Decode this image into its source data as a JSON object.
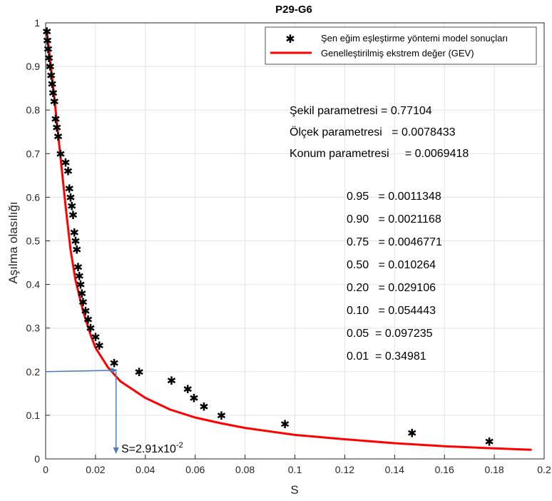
{
  "chart_data": {
    "type": "scatter",
    "title": "P29-G6",
    "xlabel": "S",
    "ylabel": "Aşılma olasılığı",
    "xlim": [
      0,
      0.2
    ],
    "ylim": [
      0,
      1
    ],
    "xticks": [
      "0",
      "0.02",
      "0.04",
      "0.06",
      "0.08",
      "0.1",
      "0.12",
      "0.14",
      "0.16",
      "0.18",
      "0.2"
    ],
    "yticks": [
      "0",
      "0.1",
      "0.2",
      "0.3",
      "0.4",
      "0.5",
      "0.6",
      "0.7",
      "0.8",
      "0.9",
      "1"
    ],
    "grid": true,
    "legend_position": "top-right",
    "series": [
      {
        "name": "Şen eğim eşleştirme yöntemi model sonuçları",
        "type": "scatter",
        "marker": "asterisk",
        "color": "#000000",
        "x": [
          0.0005,
          0.0007,
          0.001,
          0.0013,
          0.0018,
          0.0022,
          0.0026,
          0.003,
          0.0035,
          0.004,
          0.0045,
          0.005,
          0.006,
          0.008,
          0.009,
          0.0095,
          0.01,
          0.0105,
          0.011,
          0.0115,
          0.012,
          0.0125,
          0.013,
          0.0135,
          0.014,
          0.0145,
          0.015,
          0.016,
          0.017,
          0.018,
          0.02,
          0.0215,
          0.0275,
          0.0375,
          0.0505,
          0.057,
          0.0595,
          0.0635,
          0.0705,
          0.096,
          0.147,
          0.178
        ],
        "y": [
          0.98,
          0.96,
          0.94,
          0.92,
          0.9,
          0.88,
          0.86,
          0.84,
          0.82,
          0.78,
          0.76,
          0.74,
          0.7,
          0.68,
          0.66,
          0.62,
          0.6,
          0.58,
          0.56,
          0.52,
          0.5,
          0.48,
          0.44,
          0.42,
          0.4,
          0.38,
          0.36,
          0.34,
          0.32,
          0.3,
          0.28,
          0.26,
          0.22,
          0.2,
          0.18,
          0.16,
          0.14,
          0.12,
          0.1,
          0.08,
          0.06,
          0.04
        ]
      },
      {
        "name": "Genelleştirilmiş ekstrem değer (GEV)",
        "type": "line",
        "color": "#ff0000",
        "x": [
          0.0005,
          0.001,
          0.002,
          0.003,
          0.004,
          0.005,
          0.006,
          0.008,
          0.01,
          0.012,
          0.015,
          0.018,
          0.02,
          0.025,
          0.03,
          0.04,
          0.05,
          0.06,
          0.07,
          0.08,
          0.1,
          0.12,
          0.14,
          0.16,
          0.18,
          0.195
        ],
        "y": [
          0.98,
          0.955,
          0.905,
          0.855,
          0.8,
          0.745,
          0.69,
          0.58,
          0.48,
          0.41,
          0.34,
          0.285,
          0.255,
          0.21,
          0.178,
          0.14,
          0.113,
          0.095,
          0.082,
          0.071,
          0.055,
          0.045,
          0.036,
          0.029,
          0.024,
          0.021
        ]
      }
    ],
    "parameters": [
      "Şekil parametresi = 0.77104",
      "Ölçek parametresi   = 0.0078433",
      "Konum parametresi     = 0.0069418"
    ],
    "quantiles": [
      "0.95   = 0.0011348",
      "0.90   = 0.0021168",
      "0.75   = 0.0046771",
      "0.50   = 0.010264",
      "0.20   = 0.029106",
      "0.10   = 0.054443",
      "0.05  = 0.097235",
      "0.01  = 0.34981"
    ],
    "annotation": {
      "probability": 0.2,
      "s_value": 0.0291,
      "text_main": "S=2.91x10",
      "text_exp": "-2",
      "arrow_color": "#4a7ebb"
    }
  }
}
